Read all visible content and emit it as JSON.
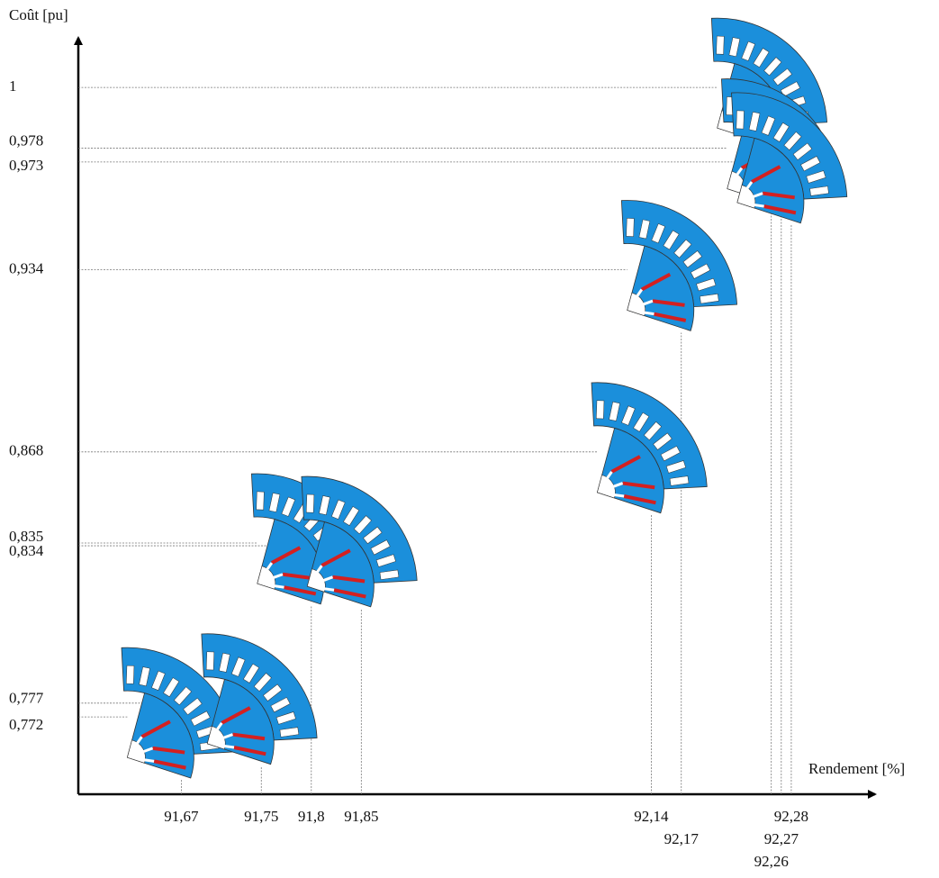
{
  "chart_data": {
    "type": "scatter",
    "y_label": "Coût [pu]",
    "x_label": "Rendement [%]",
    "x": [
      91.67,
      91.75,
      91.8,
      91.85,
      92.14,
      92.17,
      92.26,
      92.27,
      92.28
    ],
    "values": [
      0.772,
      0.777,
      0.835,
      0.834,
      0.868,
      0.934,
      1,
      0.978,
      0.973
    ],
    "color": "#1b8fdb",
    "magnet_color": "#d42020",
    "xlim": [
      91.567,
      92.362
    ],
    "ylim": [
      0.744,
      1.017
    ],
    "xticks": [
      {
        "value": 91.67,
        "label": "91,67"
      },
      {
        "value": 91.75,
        "label": "91,75"
      },
      {
        "value": 91.8,
        "label": "91,8"
      },
      {
        "value": 91.85,
        "label": "91,85"
      },
      {
        "value": 92.14,
        "label": "92,14"
      },
      {
        "value": 92.17,
        "label": "92,17"
      },
      {
        "value": 92.26,
        "label": "92,26"
      },
      {
        "value": 92.27,
        "label": "92,27"
      },
      {
        "value": 92.28,
        "label": "92,28"
      }
    ],
    "yticks": [
      1,
      {
        "value": 0.978,
        "label": "0,978"
      },
      {
        "value": 0.973,
        "label": "0,973"
      },
      {
        "value": 0.934,
        "label": "0,934"
      },
      {
        "value": 0.868,
        "label": "0,868"
      },
      {
        "value": 0.835,
        "label": "0,835"
      },
      {
        "value": 0.834,
        "label": "0,834"
      },
      {
        "value": 0.777,
        "label": "0,777"
      },
      {
        "value": 0.772,
        "label": "0,772"
      }
    ],
    "grid": true
  }
}
